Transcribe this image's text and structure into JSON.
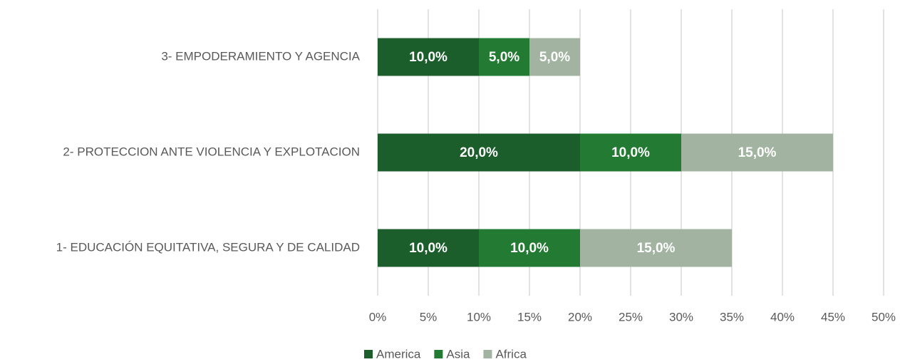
{
  "chart_data": {
    "type": "stacked-bar-horizontal",
    "categories": [
      "1- EDUCACIÓN EQUITATIVA, SEGURA Y DE CALIDAD",
      "2- PROTECCION ANTE VIOLENCIA Y EXPLOTACION",
      "3- EMPODERAMIENTO Y AGENCIA"
    ],
    "series": [
      {
        "name": "America",
        "color": "#1b5e2b",
        "values": [
          10,
          20,
          10
        ],
        "value_labels": [
          "10,0%",
          "20,0%",
          "10,0%"
        ]
      },
      {
        "name": "Asia",
        "color": "#237a32",
        "values": [
          10,
          10,
          5
        ],
        "value_labels": [
          "10,0%",
          "10,0%",
          "5,0%"
        ]
      },
      {
        "name": "Africa",
        "color": "#a2b4a1",
        "values": [
          15,
          15,
          5
        ],
        "value_labels": [
          "15,0%",
          "15,0%",
          "5,0%"
        ]
      }
    ],
    "xlim": [
      0,
      50
    ],
    "xticks": [
      {
        "value": 0,
        "label": "0%"
      },
      {
        "value": 5,
        "label": "5%"
      },
      {
        "value": 10,
        "label": "10%"
      },
      {
        "value": 15,
        "label": "15%"
      },
      {
        "value": 20,
        "label": "20%"
      },
      {
        "value": 25,
        "label": "25%"
      },
      {
        "value": 30,
        "label": "30%"
      },
      {
        "value": 35,
        "label": "35%"
      },
      {
        "value": 40,
        "label": "40%"
      },
      {
        "value": 45,
        "label": "45%"
      },
      {
        "value": 50,
        "label": "50%"
      }
    ],
    "grid": true,
    "legend": "bottom"
  }
}
